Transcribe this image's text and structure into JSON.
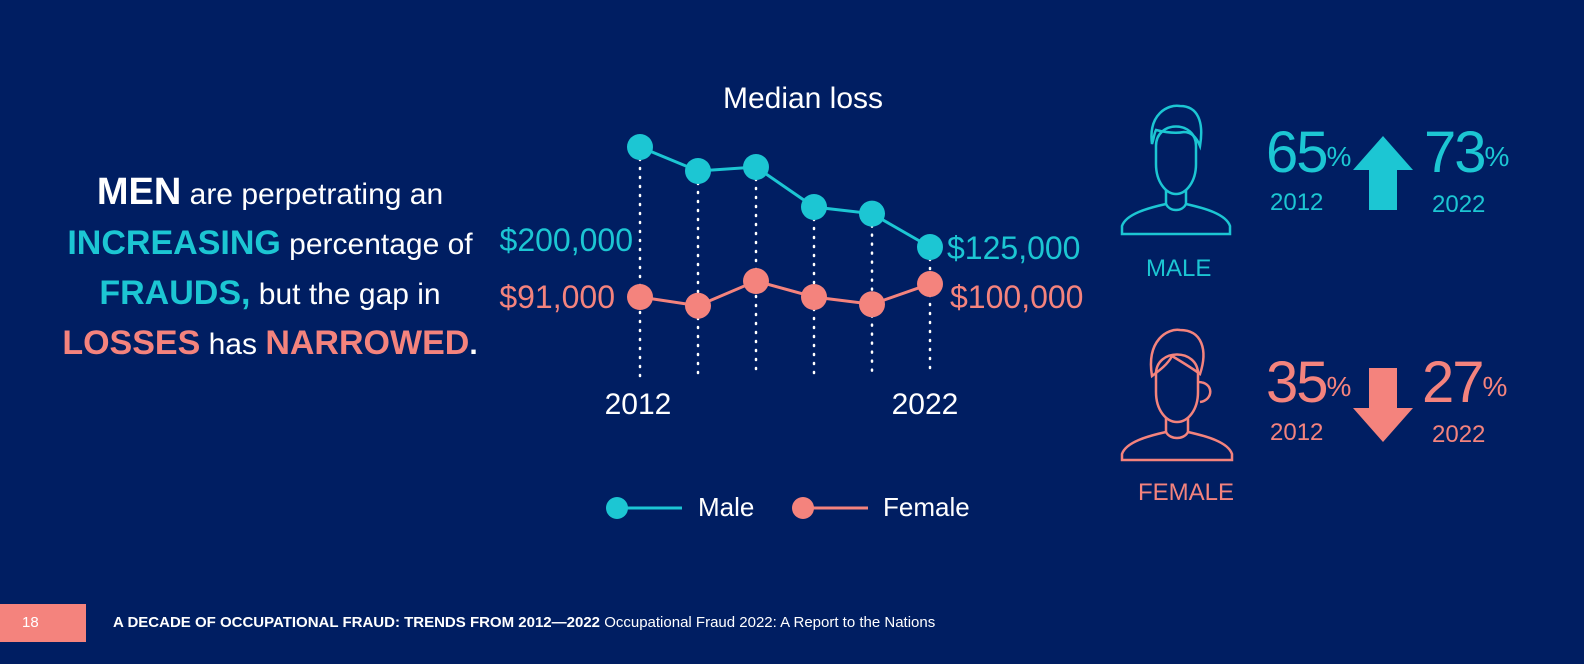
{
  "headline": {
    "w1": "MEN",
    "w2": " are perpetrating an",
    "w3": "INCREASING",
    "w4": " percentage of",
    "w5": "FRAUDS,",
    "w6": " but the gap in",
    "w7": "LOSSES",
    "w8": " has ",
    "w9": "NARROWED",
    "w10": "."
  },
  "colors": {
    "background": "#001e62",
    "male": "#1cc6d3",
    "female": "#f4837d",
    "text": "#ffffff"
  },
  "chart_data": {
    "type": "line",
    "title": "Median loss",
    "x": [
      "2012",
      "2014",
      "2016",
      "2018",
      "2020",
      "2022"
    ],
    "x_tick_labels": [
      "2012",
      "2022"
    ],
    "series": [
      {
        "name": "Male",
        "values": [
          200000,
          182000,
          185000,
          155000,
          150000,
          125000
        ],
        "color": "#1cc6d3"
      },
      {
        "name": "Female",
        "values": [
          91000,
          85000,
          102000,
          91000,
          86000,
          100000
        ],
        "color": "#f4837d"
      }
    ],
    "annotations": {
      "male_start": "$200,000",
      "male_end": "$125,000",
      "female_start": "$91,000",
      "female_end": "$100,000"
    },
    "legend": [
      "Male",
      "Female"
    ],
    "legend_position": "bottom",
    "grid": "dotted vertical lines"
  },
  "gender_stats": {
    "male": {
      "label": "MALE",
      "pct_2012": "65",
      "pct_2022": "73",
      "year_start": "2012",
      "year_end": "2022",
      "trend": "up",
      "pct_sign": "%",
      "icon": "male-person-icon"
    },
    "female": {
      "label": "FEMALE",
      "pct_2012": "35",
      "pct_2022": "27",
      "year_start": "2012",
      "year_end": "2022",
      "trend": "down",
      "pct_sign": "%",
      "icon": "female-person-icon"
    }
  },
  "footer": {
    "page_number": "18",
    "section_title": "A DECADE OF OCCUPATIONAL FRAUD: TRENDS FROM 2012—2022",
    "report_title": "Occupational Fraud 2022: A Report to the Nations"
  }
}
